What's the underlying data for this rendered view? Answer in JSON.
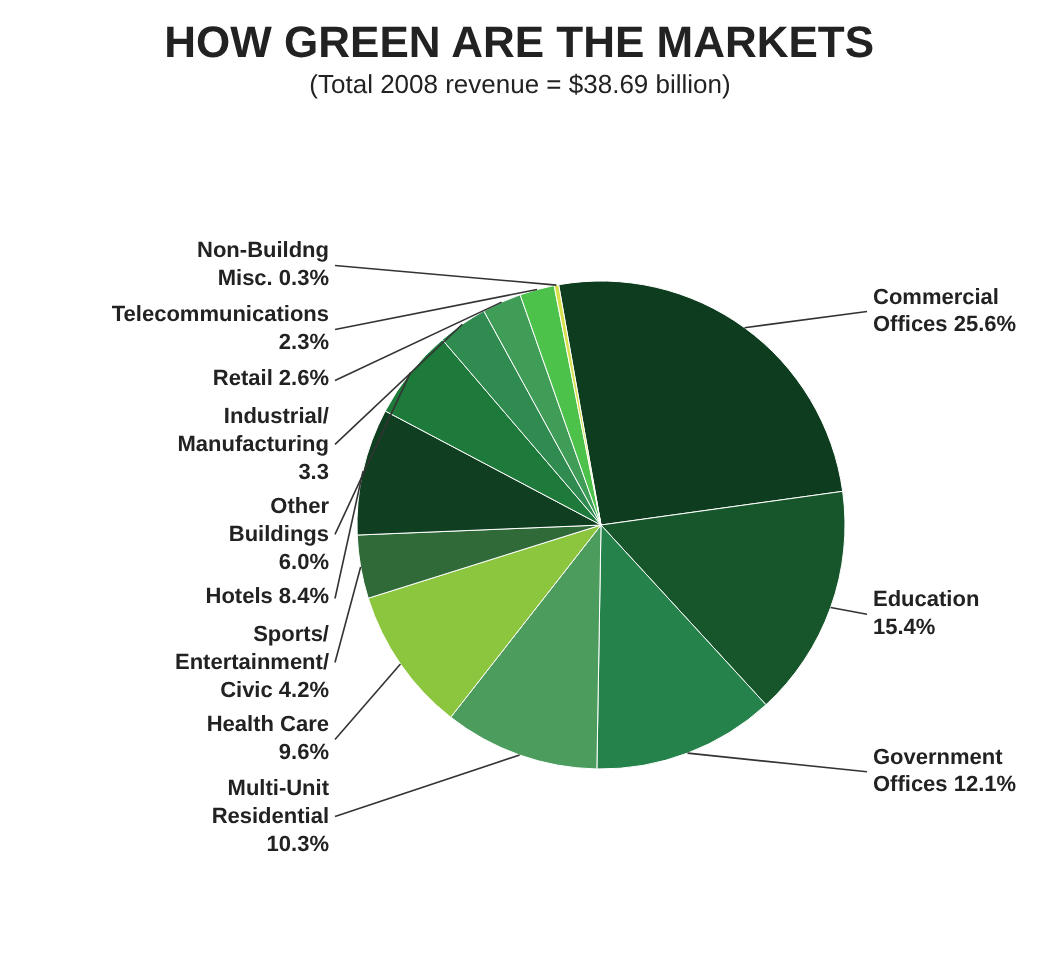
{
  "chart_data": {
    "type": "pie",
    "title": "HOW GREEN ARE THE MARKETS",
    "subtitle": "(Total 2008 revenue = $38.69 billion)",
    "categories": [
      "Commercial Offices",
      "Education",
      "Government Offices",
      "Multi-Unit Residential",
      "Health Care",
      "Sports/Entertainment/Civic",
      "Hotels",
      "Other Buildings",
      "Industrial/Manufacturing",
      "Retail",
      "Telecommunications",
      "Non-Buildng Misc."
    ],
    "values": [
      25.6,
      15.4,
      12.1,
      10.3,
      9.6,
      4.2,
      8.4,
      6.0,
      3.3,
      2.6,
      2.3,
      0.3
    ],
    "value_labels": [
      "25.6%",
      "15.4%",
      "12.1%",
      "10.3%",
      "9.6%",
      "4.2%",
      "8.4%",
      "6.0%",
      "3.3",
      "2.6%",
      "2.3%",
      "0.3%"
    ],
    "colors": [
      "#0e3c1f",
      "#17562b",
      "#24824a",
      "#4c9c5e",
      "#8cc63f",
      "#2f6a38",
      "#0f3f20",
      "#1e7a3a",
      "#2f8b4f",
      "#3f9d58",
      "#4cc24a",
      "#d6e04a"
    ]
  }
}
